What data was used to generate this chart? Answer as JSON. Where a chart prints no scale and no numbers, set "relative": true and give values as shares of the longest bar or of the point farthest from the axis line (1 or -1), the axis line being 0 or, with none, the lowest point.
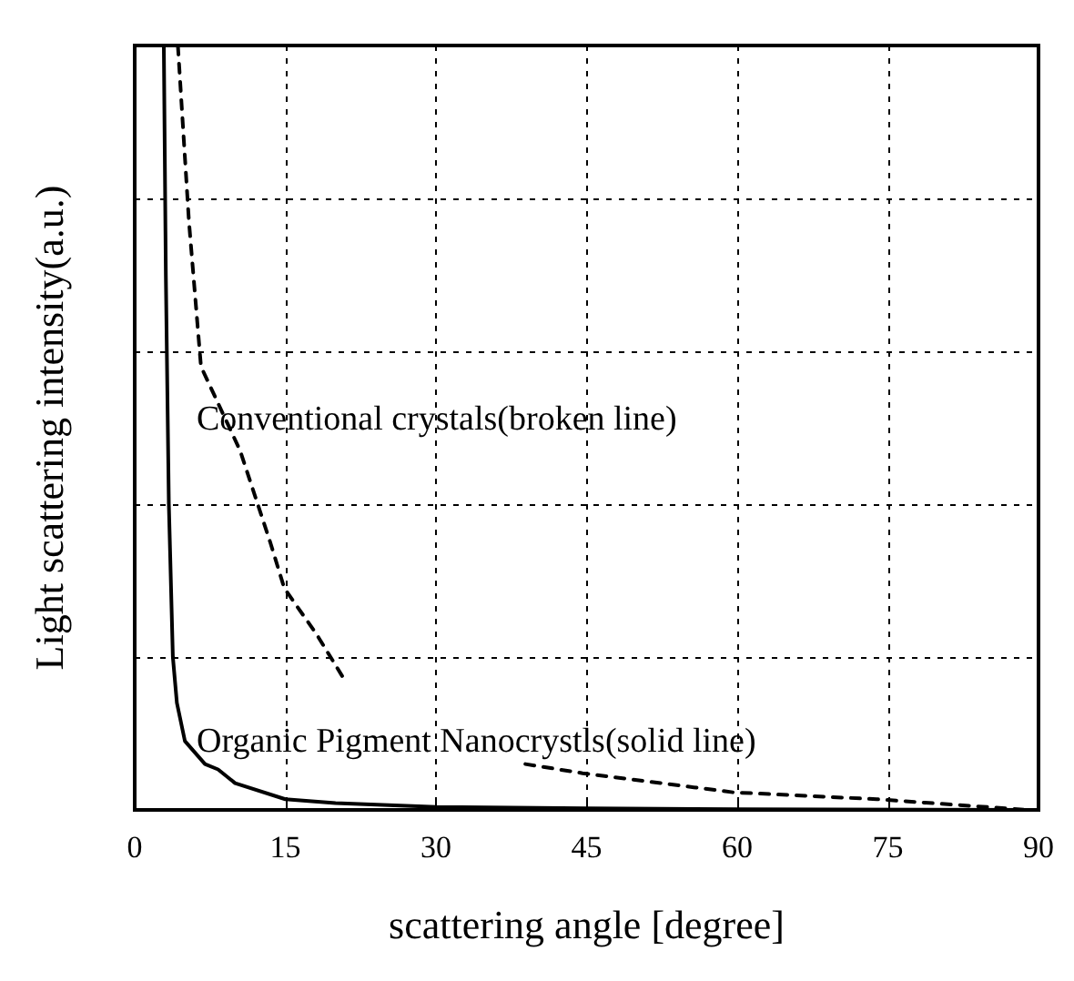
{
  "chart_data": {
    "type": "line",
    "relative": true,
    "xlabel": "scattering angle [degree]",
    "ylabel": "Light scattering intensity(a.u.)",
    "xlim": [
      0,
      90
    ],
    "xticks": [
      0,
      15,
      30,
      45,
      60,
      75,
      90
    ],
    "grid": true,
    "marker": "none",
    "annotations": [
      "Conventional crystals(broken line)",
      "Organic Pigment Nanocrystls(solid line)"
    ],
    "series": [
      {
        "color": "#000000",
        "line_style": "solid",
        "x": [
          2.9,
          3.1,
          3.4,
          3.8,
          4.2,
          5,
          7,
          8.3,
          10,
          15,
          20,
          30,
          45,
          60,
          90
        ],
        "values": [
          1,
          0.7,
          0.4,
          0.2,
          0.14,
          0.09,
          0.06,
          0.053,
          0.035,
          0.014,
          0.009,
          0.004,
          0.002,
          0.001,
          0
        ]
      },
      {
        "color": "#000000",
        "line_style": "dashed",
        "x": [
          4.3,
          5.4,
          6.6,
          10.5,
          13.5,
          14.9,
          18.1,
          20.9,
          30,
          38.9,
          44.6,
          59.6,
          73.9,
          88.9
        ],
        "values": [
          1,
          0.77,
          0.58,
          0.47,
          0.35,
          0.29,
          0.23,
          0.17,
          null,
          0.06,
          0.048,
          0.023,
          0.014,
          0
        ]
      }
    ]
  }
}
